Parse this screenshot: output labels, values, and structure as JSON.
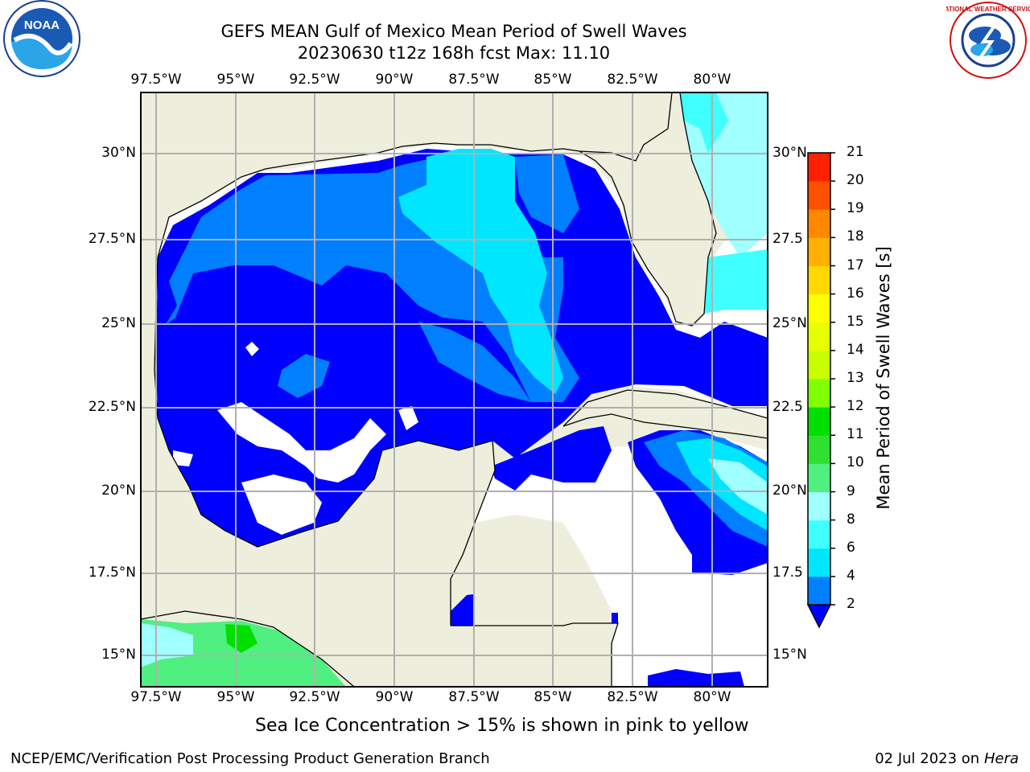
{
  "title": {
    "line1": "GEFS MEAN Gulf of Mexico Mean Period of Swell Waves",
    "line2": "20230630 t12z 168h fcst   Max: 11.10"
  },
  "axes": {
    "lon_labels": [
      "97.5°W",
      "95°W",
      "92.5°W",
      "90°W",
      "87.5°W",
      "85°W",
      "82.5°W",
      "80°W"
    ],
    "lat_labels_left": [
      "30°N",
      "27.5°N",
      "25°N",
      "22.5°N",
      "20°N",
      "17.5°N",
      "15°N"
    ],
    "lat_labels_right": [
      "30°N",
      "27.5",
      "25°N",
      "22.5",
      "20°N",
      "17.5",
      "15°N"
    ],
    "lon_range": [
      -98,
      -78.3
    ],
    "lat_range": [
      14,
      31.8
    ]
  },
  "colorbar": {
    "label": "Mean Period of Swell Waves [s]",
    "ticks": [
      "2",
      "4",
      "6",
      "8",
      "9",
      "10",
      "11",
      "12",
      "13",
      "14",
      "15",
      "16",
      "17",
      "18",
      "19",
      "20",
      "21"
    ],
    "colors": [
      "#0000ff",
      "#0080ff",
      "#00e6ff",
      "#40ffff",
      "#a0ffff",
      "#50f080",
      "#30e030",
      "#00e000",
      "#80ff00",
      "#c8ff00",
      "#e8ff00",
      "#ffff00",
      "#ffd800",
      "#ffb000",
      "#ff8800",
      "#ff5000",
      "#ff2000",
      "#ff0000"
    ]
  },
  "note": "Sea Ice Concentration > 15% is shown in pink to yellow",
  "footer": {
    "left": "NCEP/EMC/Verification Post Processing Product Generation Branch",
    "date": "02 Jul 2023 on ",
    "host": "Hera"
  },
  "logos": {
    "noaa": "NOAA",
    "nws": "NATIONAL WEATHER SERVICE"
  }
}
